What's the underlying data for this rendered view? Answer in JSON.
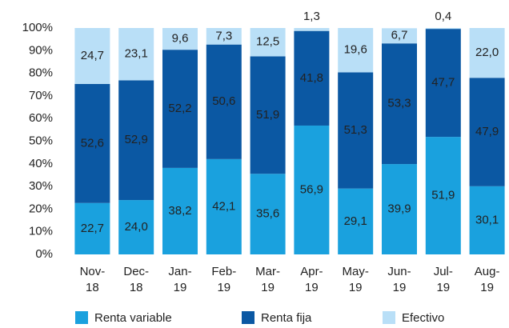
{
  "chart_data": {
    "type": "stacked-bar",
    "categories": [
      "Nov-18",
      "Dec-18",
      "Jan-19",
      "Feb-19",
      "Mar-19",
      "Apr-19",
      "May-19",
      "Jun-19",
      "Jul-19",
      "Aug-19"
    ],
    "series": [
      {
        "name": "Renta variable",
        "color": "#1aa1de",
        "values": [
          22.7,
          24,
          38.2,
          42.1,
          35.6,
          56.9,
          29.1,
          39.9,
          51.9,
          30.1
        ],
        "value_labels": [
          "22,7",
          "24,0",
          "38,2",
          "42,1",
          "35,6",
          "56,9",
          "29,1",
          "39,9",
          "51,9",
          "30,1"
        ]
      },
      {
        "name": "Renta fija",
        "color": "#0b58a3",
        "values": [
          52.6,
          52.9,
          52.2,
          50.6,
          51.9,
          41.8,
          51.3,
          53.3,
          47.7,
          47.9
        ],
        "value_labels": [
          "52,6",
          "52,9",
          "52,2",
          "50,6",
          "51,9",
          "41,8",
          "51,3",
          "53,3",
          "47,7",
          "47,9"
        ]
      },
      {
        "name": "Efectivo",
        "color": "#b9dff7",
        "values": [
          24.7,
          23.1,
          9.6,
          7.3,
          12.5,
          1.3,
          19.6,
          6.7,
          0.4,
          22
        ],
        "value_labels": [
          "24,7",
          "23,1",
          "9,6",
          "7,3",
          "12,5",
          "1,3",
          "19,6",
          "6,7",
          "0,4",
          "22,0"
        ]
      }
    ],
    "ylim": [
      0,
      100
    ],
    "yticks": [
      {
        "value": 0,
        "label": "0%"
      },
      {
        "value": 10,
        "label": "10%"
      },
      {
        "value": 20,
        "label": "20%"
      },
      {
        "value": 30,
        "label": "30%"
      },
      {
        "value": 40,
        "label": "40%"
      },
      {
        "value": 50,
        "label": "50%"
      },
      {
        "value": 60,
        "label": "60%"
      },
      {
        "value": 70,
        "label": "70%"
      },
      {
        "value": 80,
        "label": "80%"
      },
      {
        "value": 90,
        "label": "90%"
      },
      {
        "value": 100,
        "label": "100%"
      }
    ],
    "grid": false,
    "legend": "bottom"
  }
}
